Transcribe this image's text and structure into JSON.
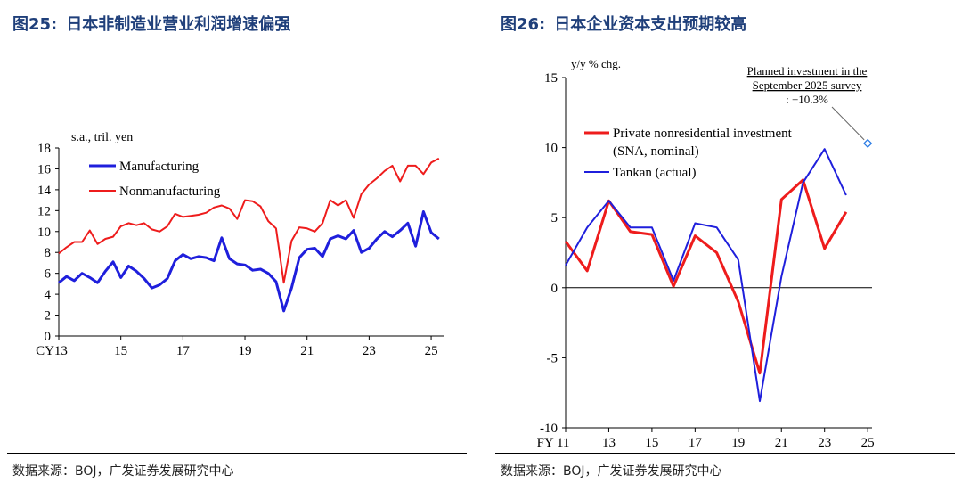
{
  "left": {
    "fig_no": "图25:",
    "title": "日本非制造业营业利润增速偏强",
    "source": "数据来源：BOJ，广发证券发展研究中心"
  },
  "right": {
    "fig_no": "图26:",
    "title": "日本企业资本支出预期较高",
    "source": "数据来源：BOJ，广发证券发展研究中心"
  },
  "chart_data": [
    {
      "type": "line",
      "ylabel": "s.a., tril. yen",
      "xlabel": "",
      "ylim": [
        0,
        18
      ],
      "yticks": [
        "0",
        "2",
        "4",
        "6",
        "8",
        "10",
        "12",
        "14",
        "16",
        "18"
      ],
      "xlim": [
        2013,
        2025.4
      ],
      "xticks": [
        {
          "v": 2013,
          "label": "CY13"
        },
        {
          "v": 2015,
          "label": "15"
        },
        {
          "v": 2017,
          "label": "17"
        },
        {
          "v": 2019,
          "label": "19"
        },
        {
          "v": 2021,
          "label": "21"
        },
        {
          "v": 2023,
          "label": "23"
        },
        {
          "v": 2025,
          "label": "25"
        }
      ],
      "legend_position": "top-left",
      "series": [
        {
          "name": "Manufacturing",
          "color": "#1f1fdc",
          "x": [
            2013.0,
            2013.25,
            2013.5,
            2013.75,
            2014.0,
            2014.25,
            2014.5,
            2014.75,
            2015.0,
            2015.25,
            2015.5,
            2015.75,
            2016.0,
            2016.25,
            2016.5,
            2016.75,
            2017.0,
            2017.25,
            2017.5,
            2017.75,
            2018.0,
            2018.25,
            2018.5,
            2018.75,
            2019.0,
            2019.25,
            2019.5,
            2019.75,
            2020.0,
            2020.25,
            2020.5,
            2020.75,
            2021.0,
            2021.25,
            2021.5,
            2021.75,
            2022.0,
            2022.25,
            2022.5,
            2022.75,
            2023.0,
            2023.25,
            2023.5,
            2023.75,
            2024.0,
            2024.25,
            2024.5,
            2024.75,
            2025.0,
            2025.25
          ],
          "values": [
            5.1,
            5.7,
            5.3,
            6.0,
            5.6,
            5.1,
            6.2,
            7.1,
            5.6,
            6.7,
            6.2,
            5.5,
            4.6,
            4.9,
            5.5,
            7.2,
            7.8,
            7.4,
            7.6,
            7.5,
            7.2,
            9.4,
            7.4,
            6.9,
            6.8,
            6.3,
            6.4,
            6.0,
            5.2,
            2.4,
            4.6,
            7.5,
            8.3,
            8.4,
            7.6,
            9.3,
            9.6,
            9.3,
            10.1,
            8.0,
            8.4,
            9.3,
            10.0,
            9.5,
            10.1,
            10.8,
            8.6,
            11.9,
            9.9,
            9.3
          ]
        },
        {
          "name": "Nonmanufacturing",
          "color": "#ee1c1c",
          "x": [
            2013.0,
            2013.25,
            2013.5,
            2013.75,
            2014.0,
            2014.25,
            2014.5,
            2014.75,
            2015.0,
            2015.25,
            2015.5,
            2015.75,
            2016.0,
            2016.25,
            2016.5,
            2016.75,
            2017.0,
            2017.25,
            2017.5,
            2017.75,
            2018.0,
            2018.25,
            2018.5,
            2018.75,
            2019.0,
            2019.25,
            2019.5,
            2019.75,
            2020.0,
            2020.25,
            2020.5,
            2020.75,
            2021.0,
            2021.25,
            2021.5,
            2021.75,
            2022.0,
            2022.25,
            2022.5,
            2022.75,
            2023.0,
            2023.25,
            2023.5,
            2023.75,
            2024.0,
            2024.25,
            2024.5,
            2024.75,
            2025.0,
            2025.25
          ],
          "values": [
            7.9,
            8.5,
            9.0,
            9.0,
            10.1,
            8.8,
            9.3,
            9.5,
            10.5,
            10.8,
            10.6,
            10.8,
            10.2,
            10.0,
            10.5,
            11.7,
            11.4,
            11.5,
            11.6,
            11.8,
            12.3,
            12.5,
            12.2,
            11.2,
            13.0,
            12.9,
            12.4,
            11.0,
            10.3,
            5.1,
            9.1,
            10.4,
            10.3,
            10.0,
            10.8,
            13.0,
            12.5,
            13.0,
            11.3,
            13.6,
            14.5,
            15.1,
            15.8,
            16.3,
            14.8,
            16.3,
            16.3,
            15.5,
            16.6,
            17.0
          ]
        }
      ]
    },
    {
      "type": "line",
      "ylabel": "y/y % chg.",
      "xlabel": "",
      "ylim": [
        -10,
        15
      ],
      "yticks": [
        "-10",
        "-5",
        "0",
        "5",
        "10",
        "15"
      ],
      "xlim": [
        2011,
        2025.2
      ],
      "xticks": [
        {
          "v": 2011,
          "label": "FY 11"
        },
        {
          "v": 2013,
          "label": "13"
        },
        {
          "v": 2015,
          "label": "15"
        },
        {
          "v": 2017,
          "label": "17"
        },
        {
          "v": 2019,
          "label": "19"
        },
        {
          "v": 2021,
          "label": "21"
        },
        {
          "v": 2023,
          "label": "23"
        },
        {
          "v": 2025,
          "label": "25"
        }
      ],
      "legend_position": "top-left",
      "series": [
        {
          "name": "Private nonresidential investment",
          "name2": "(SNA, nominal)",
          "color": "#ee1c1c",
          "x": [
            2011,
            2012,
            2013,
            2014,
            2015,
            2016,
            2017,
            2018,
            2019,
            2020,
            2021,
            2022,
            2023,
            2024
          ],
          "values": [
            3.3,
            1.2,
            6.2,
            4.0,
            3.8,
            0.1,
            3.7,
            2.5,
            -1.0,
            -6.1,
            6.3,
            7.7,
            2.8,
            5.4
          ]
        },
        {
          "name": "Tankan (actual)",
          "color": "#1f1fdc",
          "x": [
            2011,
            2012,
            2013,
            2014,
            2015,
            2016,
            2017,
            2018,
            2019,
            2020,
            2021,
            2022,
            2023,
            2024
          ],
          "values": [
            1.6,
            4.3,
            6.2,
            4.3,
            4.3,
            0.5,
            4.6,
            4.3,
            2.0,
            -8.1,
            0.8,
            7.5,
            9.9,
            6.6
          ]
        }
      ],
      "annotation": {
        "lines": [
          "Planned investment in the",
          "September 2025 survey"
        ],
        "value_text": ": +10.3%",
        "x": 2025,
        "y": 10.3
      }
    }
  ]
}
